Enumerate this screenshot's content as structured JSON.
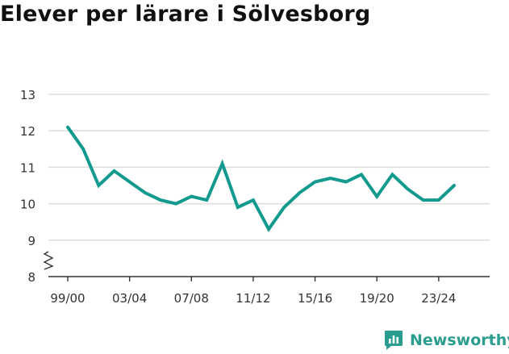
{
  "title": "Elever per lärare i Sölvesborg",
  "brand": {
    "name": "Newsworthy",
    "icon": "newsworthy-logo-icon"
  },
  "colors": {
    "line": "#139a8f",
    "grid": "#dddddd",
    "axis": "#333333",
    "brand": "#2a9d8f"
  },
  "chart_data": {
    "type": "line",
    "title": "Elever per lärare i Sölvesborg",
    "xlabel": "",
    "ylabel": "",
    "ylim": [
      8,
      13
    ],
    "y_ticks": [
      8,
      9,
      10,
      11,
      12,
      13
    ],
    "y_axis_break": true,
    "grid": true,
    "categories": [
      "99/00",
      "00/01",
      "01/02",
      "02/03",
      "03/04",
      "04/05",
      "05/06",
      "06/07",
      "07/08",
      "08/09",
      "09/10",
      "10/11",
      "11/12",
      "12/13",
      "13/14",
      "14/15",
      "15/16",
      "16/17",
      "17/18",
      "18/19",
      "19/20",
      "20/21",
      "21/22",
      "22/23",
      "23/24",
      "24/25"
    ],
    "x_tick_labels": [
      "99/00",
      "03/04",
      "07/08",
      "11/12",
      "15/16",
      "19/20",
      "23/24"
    ],
    "series": [
      {
        "values": [
          12.1,
          11.5,
          10.5,
          10.9,
          10.6,
          10.3,
          10.1,
          10.0,
          10.2,
          10.1,
          11.1,
          9.9,
          10.1,
          9.3,
          9.9,
          10.3,
          10.6,
          10.7,
          10.6,
          10.8,
          10.2,
          10.8,
          10.4,
          10.1,
          10.1,
          10.5
        ]
      }
    ]
  }
}
